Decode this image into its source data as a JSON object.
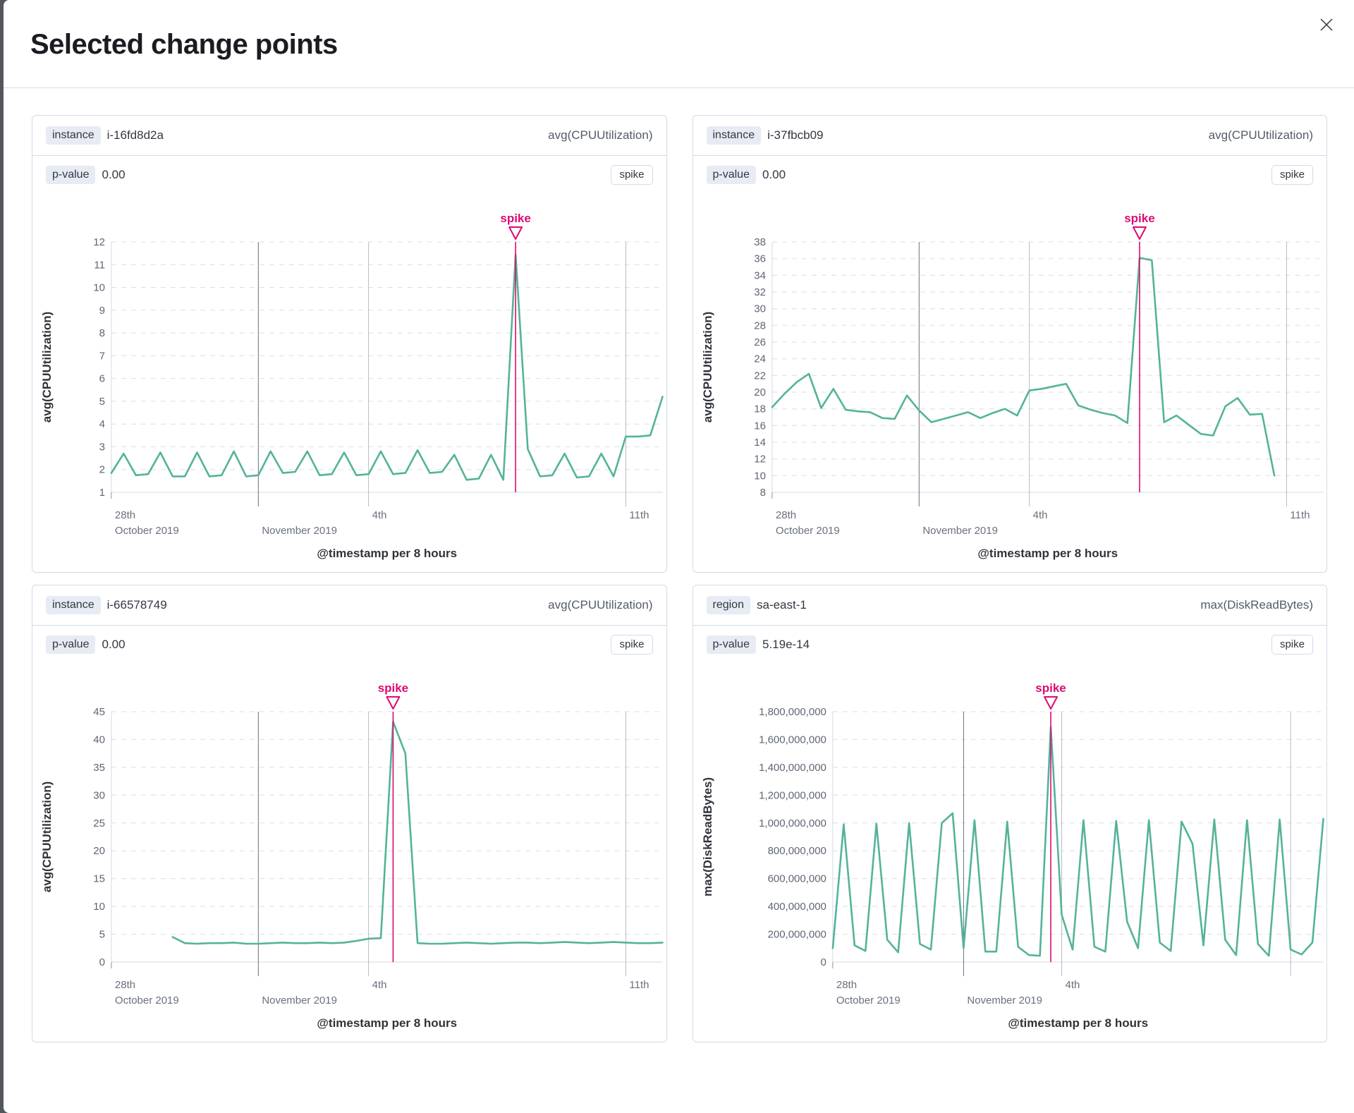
{
  "modal": {
    "title": "Selected change points",
    "close_icon": "x-close"
  },
  "colors": {
    "series": "#54b399",
    "annotation": "#dd0a73",
    "month_line": "#69707d",
    "minor_line": "#b6bcc6",
    "grid": "#d9dee8",
    "axis": "#d3dae6",
    "tick": "#8b93a1"
  },
  "panels": [
    {
      "key_label": "instance",
      "key_value": "i-16fd8d2a",
      "metric": "avg(CPUUtilization)",
      "p_label": "p-value",
      "p_value": "0.00",
      "action_label": "spike",
      "chart_data": {
        "type": "line",
        "x_axis_title": "@timestamp per 8 hours",
        "y_axis_title": "avg(CPUUtilization)",
        "ylim": [
          1,
          12
        ],
        "y_ticks": [
          1,
          2,
          3,
          4,
          5,
          6,
          7,
          8,
          9,
          10,
          11,
          12
        ],
        "y_tick_format": "plain",
        "grid": true,
        "annotation": {
          "label": "spike",
          "index": 33
        },
        "x_ticks": [
          {
            "index": 0,
            "label": "28th",
            "sublabel": "October 2019",
            "line": "tick"
          },
          {
            "index": 12,
            "label": "",
            "sublabel": "November 2019",
            "line": "month"
          },
          {
            "index": 21,
            "label": "4th",
            "sublabel": "",
            "line": "minor"
          },
          {
            "index": 42,
            "label": "11th",
            "sublabel": "",
            "line": "minor"
          }
        ],
        "values": [
          1.85,
          2.7,
          1.75,
          1.8,
          2.75,
          1.7,
          1.7,
          2.75,
          1.7,
          1.75,
          2.8,
          1.7,
          1.75,
          2.8,
          1.85,
          1.9,
          2.8,
          1.75,
          1.8,
          2.75,
          1.75,
          1.8,
          2.8,
          1.8,
          1.85,
          2.85,
          1.85,
          1.9,
          2.65,
          1.55,
          1.6,
          2.65,
          1.55,
          11.45,
          2.9,
          1.7,
          1.75,
          2.7,
          1.65,
          1.7,
          2.7,
          1.7,
          3.45,
          3.45,
          3.5,
          5.2
        ]
      }
    },
    {
      "key_label": "instance",
      "key_value": "i-37fbcb09",
      "metric": "avg(CPUUtilization)",
      "p_label": "p-value",
      "p_value": "0.00",
      "action_label": "spike",
      "chart_data": {
        "type": "line",
        "x_axis_title": "@timestamp per 8 hours",
        "y_axis_title": "avg(CPUUtilization)",
        "ylim": [
          8,
          38
        ],
        "y_ticks": [
          8,
          10,
          12,
          14,
          16,
          18,
          20,
          22,
          24,
          26,
          28,
          30,
          32,
          34,
          36,
          38
        ],
        "y_tick_format": "plain",
        "grid": true,
        "annotation": {
          "label": "spike",
          "index": 30
        },
        "x_ticks": [
          {
            "index": 0,
            "label": "28th",
            "sublabel": "October 2019",
            "line": "tick"
          },
          {
            "index": 12,
            "label": "",
            "sublabel": "November 2019",
            "line": "month"
          },
          {
            "index": 21,
            "label": "4th",
            "sublabel": "",
            "line": "minor"
          },
          {
            "index": 42,
            "label": "11th",
            "sublabel": "",
            "line": "minor"
          }
        ],
        "values": [
          18.2,
          19.8,
          21.2,
          22.2,
          18.1,
          20.4,
          17.9,
          17.7,
          17.6,
          16.9,
          16.8,
          19.6,
          17.8,
          16.4,
          16.8,
          17.2,
          17.6,
          16.9,
          17.5,
          18.0,
          17.2,
          20.2,
          20.4,
          20.7,
          21.0,
          18.4,
          17.9,
          17.5,
          17.2,
          16.3,
          36.1,
          35.8,
          16.4,
          17.2,
          16.1,
          15.0,
          14.8,
          18.3,
          19.3,
          17.3,
          17.4,
          10.0,
          null,
          null,
          null,
          null
        ]
      }
    },
    {
      "key_label": "instance",
      "key_value": "i-66578749",
      "metric": "avg(CPUUtilization)",
      "p_label": "p-value",
      "p_value": "0.00",
      "action_label": "spike",
      "chart_data": {
        "type": "line",
        "x_axis_title": "@timestamp per 8 hours",
        "y_axis_title": "avg(CPUUtilization)",
        "ylim": [
          0,
          45
        ],
        "y_ticks": [
          0,
          5,
          10,
          15,
          20,
          25,
          30,
          35,
          40,
          45
        ],
        "y_tick_format": "plain",
        "grid": true,
        "annotation": {
          "label": "spike",
          "index": 23
        },
        "x_ticks": [
          {
            "index": 0,
            "label": "28th",
            "sublabel": "October 2019",
            "line": "tick"
          },
          {
            "index": 12,
            "label": "",
            "sublabel": "November 2019",
            "line": "month"
          },
          {
            "index": 21,
            "label": "4th",
            "sublabel": "",
            "line": "minor"
          },
          {
            "index": 42,
            "label": "11th",
            "sublabel": "",
            "line": "minor"
          }
        ],
        "values": [
          null,
          null,
          null,
          null,
          null,
          4.5,
          3.4,
          3.3,
          3.4,
          3.4,
          3.5,
          3.3,
          3.3,
          3.4,
          3.5,
          3.4,
          3.4,
          3.5,
          3.4,
          3.5,
          3.8,
          4.2,
          4.3,
          43.2,
          37.5,
          3.4,
          3.3,
          3.3,
          3.4,
          3.5,
          3.4,
          3.3,
          3.4,
          3.5,
          3.5,
          3.4,
          3.5,
          3.6,
          3.5,
          3.4,
          3.5,
          3.6,
          3.5,
          3.4,
          3.4,
          3.5
        ]
      }
    },
    {
      "key_label": "region",
      "key_value": "sa-east-1",
      "metric": "max(DiskReadBytes)",
      "p_label": "p-value",
      "p_value": "5.19e-14",
      "action_label": "spike",
      "chart_data": {
        "type": "line",
        "x_axis_title": "@timestamp per 8 hours",
        "y_axis_title": "max(DiskReadBytes)",
        "ylim": [
          0,
          1800000000
        ],
        "y_ticks": [
          0,
          200000000,
          400000000,
          600000000,
          800000000,
          1000000000,
          1200000000,
          1400000000,
          1600000000,
          1800000000
        ],
        "y_tick_format": "comma",
        "grid": true,
        "annotation": {
          "label": "spike",
          "index": 20
        },
        "x_ticks": [
          {
            "index": 0,
            "label": "28th",
            "sublabel": "October 2019",
            "line": "tick"
          },
          {
            "index": 12,
            "label": "",
            "sublabel": "November 2019",
            "line": "month"
          },
          {
            "index": 21,
            "label": "4th",
            "sublabel": "",
            "line": "minor"
          },
          {
            "index": 42,
            "label": "",
            "sublabel": "",
            "line": "minor"
          }
        ],
        "values": [
          100000000,
          990000000,
          120000000,
          80000000,
          995000000,
          160000000,
          70000000,
          1000000000,
          130000000,
          90000000,
          1000000000,
          1070000000,
          100000000,
          1020000000,
          75000000,
          75000000,
          1010000000,
          110000000,
          50000000,
          45000000,
          1690000000,
          340000000,
          90000000,
          1020000000,
          110000000,
          75000000,
          1015000000,
          290000000,
          100000000,
          1020000000,
          140000000,
          80000000,
          1010000000,
          850000000,
          120000000,
          1025000000,
          160000000,
          50000000,
          1020000000,
          130000000,
          45000000,
          1025000000,
          90000000,
          55000000,
          140000000,
          1030000000
        ]
      }
    }
  ]
}
